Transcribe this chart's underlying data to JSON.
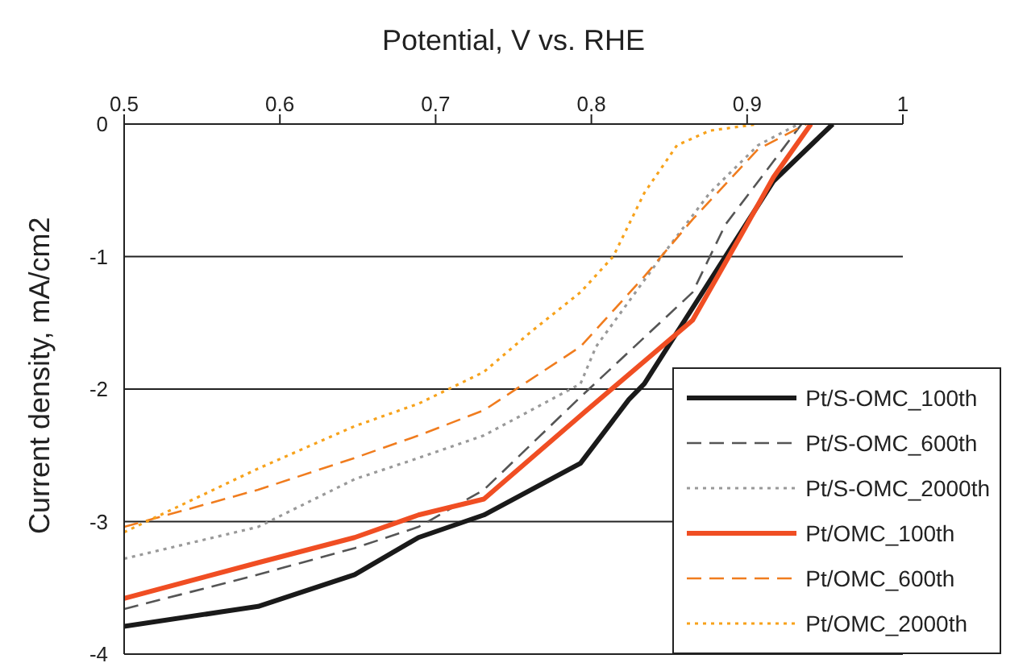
{
  "chart_data": {
    "type": "line",
    "xlabel": "Potential, V vs. RHE",
    "ylabel": "Current density, mA/cm2",
    "xlim": [
      0.5,
      1
    ],
    "xticks": [
      0.5,
      0.6,
      0.7,
      0.8,
      0.9,
      1
    ],
    "ylim": [
      -4,
      0
    ],
    "yticks": [
      -4,
      -3,
      -2,
      -1,
      0
    ],
    "grid": "y",
    "legend": "bottom right",
    "marker": "none",
    "series": [
      {
        "name": "Pt/S-OMC_100th",
        "color": "#1a1a1a",
        "line_style": "solid",
        "x": [
          0.5,
          0.586,
          0.648,
          0.689,
          0.731,
          0.793,
          0.824,
          0.834,
          0.886,
          0.917,
          0.955
        ],
        "values": [
          -3.79,
          -3.64,
          -3.4,
          -3.12,
          -2.95,
          -2.56,
          -2.08,
          -1.96,
          -1.0,
          -0.43,
          0
        ]
      },
      {
        "name": "Pt/S-OMC_600th",
        "color": "#555555",
        "line_style": "dashed",
        "x": [
          0.5,
          0.586,
          0.648,
          0.689,
          0.731,
          0.793,
          0.865,
          0.886,
          0.917,
          0.935
        ],
        "values": [
          -3.66,
          -3.4,
          -3.2,
          -3.04,
          -2.76,
          -2.06,
          -1.27,
          -0.76,
          -0.28,
          0
        ]
      },
      {
        "name": "Pt/S-OMC_2000th",
        "color": "#999999",
        "line_style": "dotted",
        "x": [
          0.5,
          0.586,
          0.648,
          0.689,
          0.731,
          0.793,
          0.803,
          0.845,
          0.876,
          0.907,
          0.933
        ],
        "values": [
          -3.28,
          -3.04,
          -2.68,
          -2.52,
          -2.35,
          -1.96,
          -1.68,
          -1.0,
          -0.52,
          -0.16,
          0
        ]
      },
      {
        "name": "Pt/OMC_100th",
        "color": "#f04e23",
        "line_style": "solid",
        "x": [
          0.5,
          0.586,
          0.648,
          0.689,
          0.731,
          0.793,
          0.865,
          0.896,
          0.917,
          0.941
        ],
        "values": [
          -3.58,
          -3.31,
          -3.12,
          -2.95,
          -2.83,
          -2.2,
          -1.48,
          -0.84,
          -0.4,
          0
        ]
      },
      {
        "name": "Pt/OMC_600th",
        "color": "#f07c1e",
        "line_style": "dashed",
        "x": [
          0.5,
          0.586,
          0.648,
          0.689,
          0.731,
          0.793,
          0.834,
          0.865,
          0.907,
          0.938
        ],
        "values": [
          -3.04,
          -2.76,
          -2.52,
          -2.35,
          -2.16,
          -1.68,
          -1.15,
          -0.72,
          -0.19,
          0
        ]
      },
      {
        "name": "Pt/OMC_2000th",
        "color": "#f7a21b",
        "line_style": "dotted",
        "x": [
          0.5,
          0.586,
          0.648,
          0.689,
          0.731,
          0.762,
          0.793,
          0.814,
          0.834,
          0.855,
          0.876,
          0.907
        ],
        "values": [
          -3.08,
          -2.6,
          -2.28,
          -2.11,
          -1.87,
          -1.56,
          -1.27,
          -1.0,
          -0.52,
          -0.16,
          -0.05,
          0
        ]
      }
    ]
  }
}
